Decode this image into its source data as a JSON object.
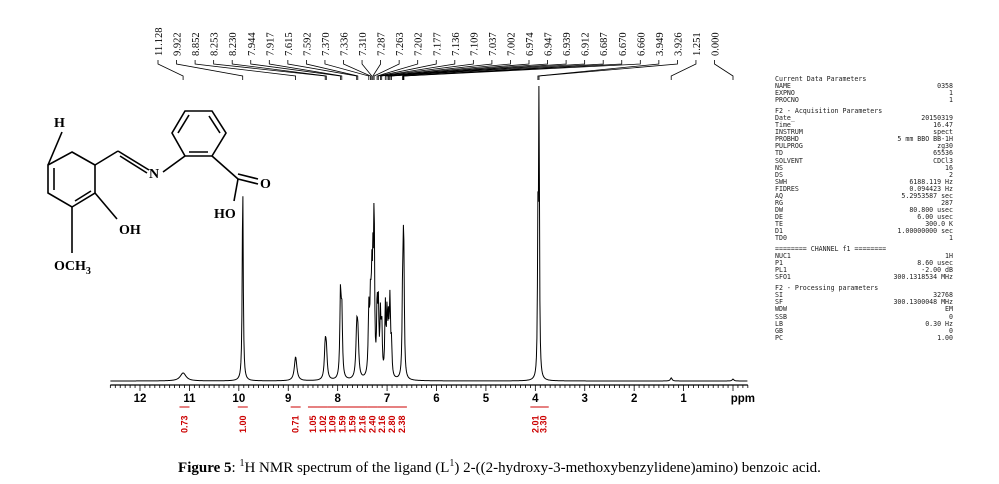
{
  "chart_data": {
    "type": "line",
    "title": "",
    "xlabel": "ppm",
    "x_reversed": true,
    "xlim": [
      12.6,
      -0.3
    ],
    "x_ticks": [
      "12",
      "11",
      "10",
      "9",
      "8",
      "7",
      "6",
      "5",
      "4",
      "3",
      "2",
      "1",
      "ppm"
    ],
    "peak_labels": [
      "11.128",
      "9.922",
      "8.852",
      "8.253",
      "8.230",
      "7.944",
      "7.917",
      "7.615",
      "7.592",
      "7.370",
      "7.336",
      "7.310",
      "7.287",
      "7.263",
      "7.202",
      "7.177",
      "7.136",
      "7.109",
      "7.037",
      "7.002",
      "6.974",
      "6.947",
      "6.939",
      "6.912",
      "6.687",
      "6.670",
      "6.660",
      "3.949",
      "3.926",
      "1.251",
      "0.000"
    ],
    "peaks": [
      {
        "x": 11.128,
        "h": 0.025,
        "w": 0.07
      },
      {
        "x": 9.922,
        "h": 0.62,
        "w": 0.012
      },
      {
        "x": 8.852,
        "h": 0.075,
        "w": 0.03
      },
      {
        "x": 8.253,
        "h": 0.1,
        "w": 0.02
      },
      {
        "x": 8.23,
        "h": 0.08,
        "w": 0.02
      },
      {
        "x": 7.944,
        "h": 0.26,
        "w": 0.015
      },
      {
        "x": 7.917,
        "h": 0.2,
        "w": 0.015
      },
      {
        "x": 7.615,
        "h": 0.14,
        "w": 0.02
      },
      {
        "x": 7.592,
        "h": 0.12,
        "w": 0.02
      },
      {
        "x": 7.37,
        "h": 0.2,
        "w": 0.015
      },
      {
        "x": 7.336,
        "h": 0.22,
        "w": 0.015
      },
      {
        "x": 7.31,
        "h": 0.25,
        "w": 0.012
      },
      {
        "x": 7.287,
        "h": 0.3,
        "w": 0.012
      },
      {
        "x": 7.263,
        "h": 0.52,
        "w": 0.01
      },
      {
        "x": 7.202,
        "h": 0.22,
        "w": 0.012
      },
      {
        "x": 7.177,
        "h": 0.2,
        "w": 0.012
      },
      {
        "x": 7.136,
        "h": 0.18,
        "w": 0.012
      },
      {
        "x": 7.109,
        "h": 0.16,
        "w": 0.012
      },
      {
        "x": 7.037,
        "h": 0.22,
        "w": 0.012
      },
      {
        "x": 7.002,
        "h": 0.19,
        "w": 0.012
      },
      {
        "x": 6.974,
        "h": 0.15,
        "w": 0.012
      },
      {
        "x": 6.947,
        "h": 0.14,
        "w": 0.012
      },
      {
        "x": 6.939,
        "h": 0.12,
        "w": 0.012
      },
      {
        "x": 6.912,
        "h": 0.1,
        "w": 0.012
      },
      {
        "x": 6.687,
        "h": 0.24,
        "w": 0.012
      },
      {
        "x": 6.67,
        "h": 0.28,
        "w": 0.012
      },
      {
        "x": 6.66,
        "h": 0.22,
        "w": 0.012
      },
      {
        "x": 3.949,
        "h": 0.45,
        "w": 0.01
      },
      {
        "x": 3.926,
        "h": 0.9,
        "w": 0.01
      },
      {
        "x": 1.251,
        "h": 0.01,
        "w": 0.02
      },
      {
        "x": 0.0,
        "h": 0.006,
        "w": 0.02
      }
    ],
    "integrals": [
      {
        "x": 11.1,
        "label": "0.73"
      },
      {
        "x": 9.92,
        "label": "1.00"
      },
      {
        "x": 8.85,
        "label": "0.71"
      },
      {
        "x": 8.5,
        "label": "1.05"
      },
      {
        "x": 8.3,
        "label": "1.02"
      },
      {
        "x": 8.1,
        "label": "1.09"
      },
      {
        "x": 7.9,
        "label": "1.59"
      },
      {
        "x": 7.7,
        "label": "1.59"
      },
      {
        "x": 7.5,
        "label": "2.16"
      },
      {
        "x": 7.3,
        "label": "2.40"
      },
      {
        "x": 7.1,
        "label": "2.16"
      },
      {
        "x": 6.9,
        "label": "2.80"
      },
      {
        "x": 6.7,
        "label": "2.38"
      },
      {
        "x": 4.0,
        "label": "2.01"
      },
      {
        "x": 3.83,
        "label": "3.30"
      }
    ]
  },
  "molecule": {
    "h_label": "H",
    "n_label": "N",
    "oh_label": "OH",
    "och3_label": "OCH",
    "och3_sub": "3",
    "o_label": "O",
    "ho_label": "HO"
  },
  "parameters": {
    "current_title": "Current Data Parameters",
    "current": [
      {
        "key": "NAME",
        "value": "0358"
      },
      {
        "key": "EXPNO",
        "value": "1"
      },
      {
        "key": "PROCNO",
        "value": "1"
      }
    ],
    "acq_title": "F2 - Acquisition Parameters",
    "acq": [
      {
        "key": "Date_",
        "value": "20150319"
      },
      {
        "key": "Time",
        "value": "16.47"
      },
      {
        "key": "INSTRUM",
        "value": "spect"
      },
      {
        "key": "PROBHD",
        "value": "5 mm BBO BB-1H"
      },
      {
        "key": "PULPROG",
        "value": "zg30"
      },
      {
        "key": "TD",
        "value": "65536"
      },
      {
        "key": "SOLVENT",
        "value": "CDCl3"
      },
      {
        "key": "NS",
        "value": "16"
      },
      {
        "key": "DS",
        "value": "2"
      },
      {
        "key": "SWH",
        "value": "6188.119 Hz"
      },
      {
        "key": "FIDRES",
        "value": "0.094423 Hz"
      },
      {
        "key": "AQ",
        "value": "5.2953587 sec"
      },
      {
        "key": "RG",
        "value": "287"
      },
      {
        "key": "DW",
        "value": "80.800 usec"
      },
      {
        "key": "DE",
        "value": "6.00 usec"
      },
      {
        "key": "TE",
        "value": "300.0 K"
      },
      {
        "key": "D1",
        "value": "1.00000000 sec"
      },
      {
        "key": "TD0",
        "value": "1"
      }
    ],
    "channel_title": "======== CHANNEL f1 ========",
    "channel": [
      {
        "key": "NUC1",
        "value": "1H"
      },
      {
        "key": "P1",
        "value": "8.60 usec"
      },
      {
        "key": "PL1",
        "value": "-2.00 dB"
      },
      {
        "key": "SFO1",
        "value": "300.1318534 MHz"
      }
    ],
    "proc_title": "F2 - Processing parameters",
    "proc": [
      {
        "key": "SI",
        "value": "32768"
      },
      {
        "key": "SF",
        "value": "300.1300048 MHz"
      },
      {
        "key": "WDW",
        "value": "EM"
      },
      {
        "key": "SSB",
        "value": "0"
      },
      {
        "key": "LB",
        "value": "0.30 Hz"
      },
      {
        "key": "GB",
        "value": "0"
      },
      {
        "key": "PC",
        "value": "1.00"
      }
    ]
  },
  "caption": {
    "label": "Figure 5",
    "sep": ": ",
    "sup1": "1",
    "text1": "H NMR spectrum of the ligand (L",
    "sup2": "1",
    "text2": ") 2-((2-hydroxy-3-methoxybenzylidene)amino) benzoic acid."
  }
}
